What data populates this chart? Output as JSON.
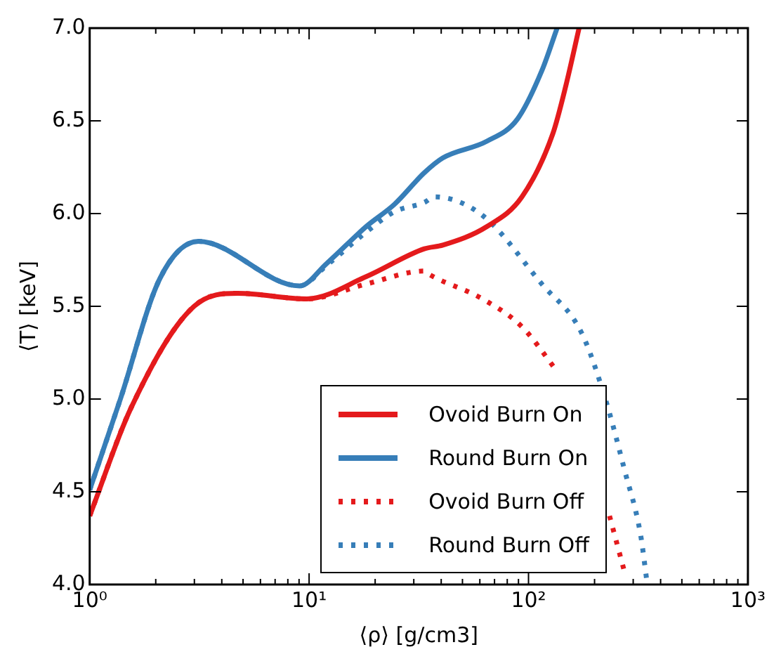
{
  "chart_data": {
    "type": "line",
    "xlabel": "⟨ρ⟩ [g/cm3]",
    "ylabel": "⟨T⟩ [keV]",
    "log": "x",
    "xlim": [
      1,
      1000
    ],
    "xticks": [
      {
        "value": 1,
        "label": "10⁰"
      },
      {
        "value": 10,
        "label": "10¹"
      },
      {
        "value": 100,
        "label": "10²"
      },
      {
        "value": 1000,
        "label": "10³"
      }
    ],
    "ylim": [
      4,
      7
    ],
    "yticks": [
      {
        "value": 4,
        "label": "4.0"
      },
      4.5,
      {
        "value": 5,
        "label": "5.0"
      },
      5.5,
      {
        "value": 6,
        "label": "6.0"
      },
      6.5,
      {
        "value": 7,
        "label": "7.0"
      }
    ],
    "grid": false,
    "legend": "bottom right",
    "marker": "none",
    "series": [
      {
        "name": "Ovoid Burn On",
        "color": "#e41a1c",
        "line_style": "solid",
        "x": [
          1,
          1.54,
          2.99,
          4.73,
          9.77,
          18.2,
          33.5,
          40.7,
          64.6,
          93.3,
          129,
          148,
          170
        ],
        "values": [
          4.37,
          4.95,
          5.5,
          5.57,
          5.54,
          5.66,
          5.81,
          5.83,
          5.93,
          6.09,
          6.43,
          6.69,
          7.0
        ]
      },
      {
        "name": "Round Burn On",
        "color": "#377eb8",
        "line_style": "solid",
        "x": [
          1,
          1.38,
          2.09,
          3.13,
          9.06,
          12,
          18.2,
          24.5,
          33.5,
          40.7,
          64.6,
          89.1,
          115,
          135
        ],
        "values": [
          4.51,
          5.0,
          5.65,
          5.85,
          5.61,
          5.73,
          5.93,
          6.05,
          6.22,
          6.3,
          6.39,
          6.51,
          6.77,
          7.0
        ]
      },
      {
        "name": "Ovoid Burn Off",
        "color": "#e41a1c",
        "line_style": "dotted",
        "x": [
          1,
          1.54,
          2.99,
          4.73,
          9.77,
          18.2,
          33.5,
          35.5,
          61.7,
          93.3,
          135,
          191,
          234,
          275
        ],
        "values": [
          4.37,
          4.95,
          5.5,
          5.57,
          5.54,
          5.62,
          5.69,
          5.67,
          5.54,
          5.39,
          5.15,
          null,
          4.37,
          4.06
        ]
      },
      {
        "name": "Round Burn Off",
        "color": "#377eb8",
        "line_style": "dotted",
        "x": [
          1,
          1.38,
          2.09,
          3.13,
          9.06,
          12,
          18.2,
          24.5,
          33.5,
          37.2,
          61.7,
          115,
          174,
          224,
          275,
          324,
          347
        ],
        "values": [
          4.51,
          5.0,
          5.65,
          5.85,
          5.61,
          5.72,
          5.9,
          6.01,
          6.06,
          6.09,
          5.99,
          5.62,
          5.36,
          5.0,
          4.61,
          4.27,
          4.01
        ]
      }
    ]
  }
}
